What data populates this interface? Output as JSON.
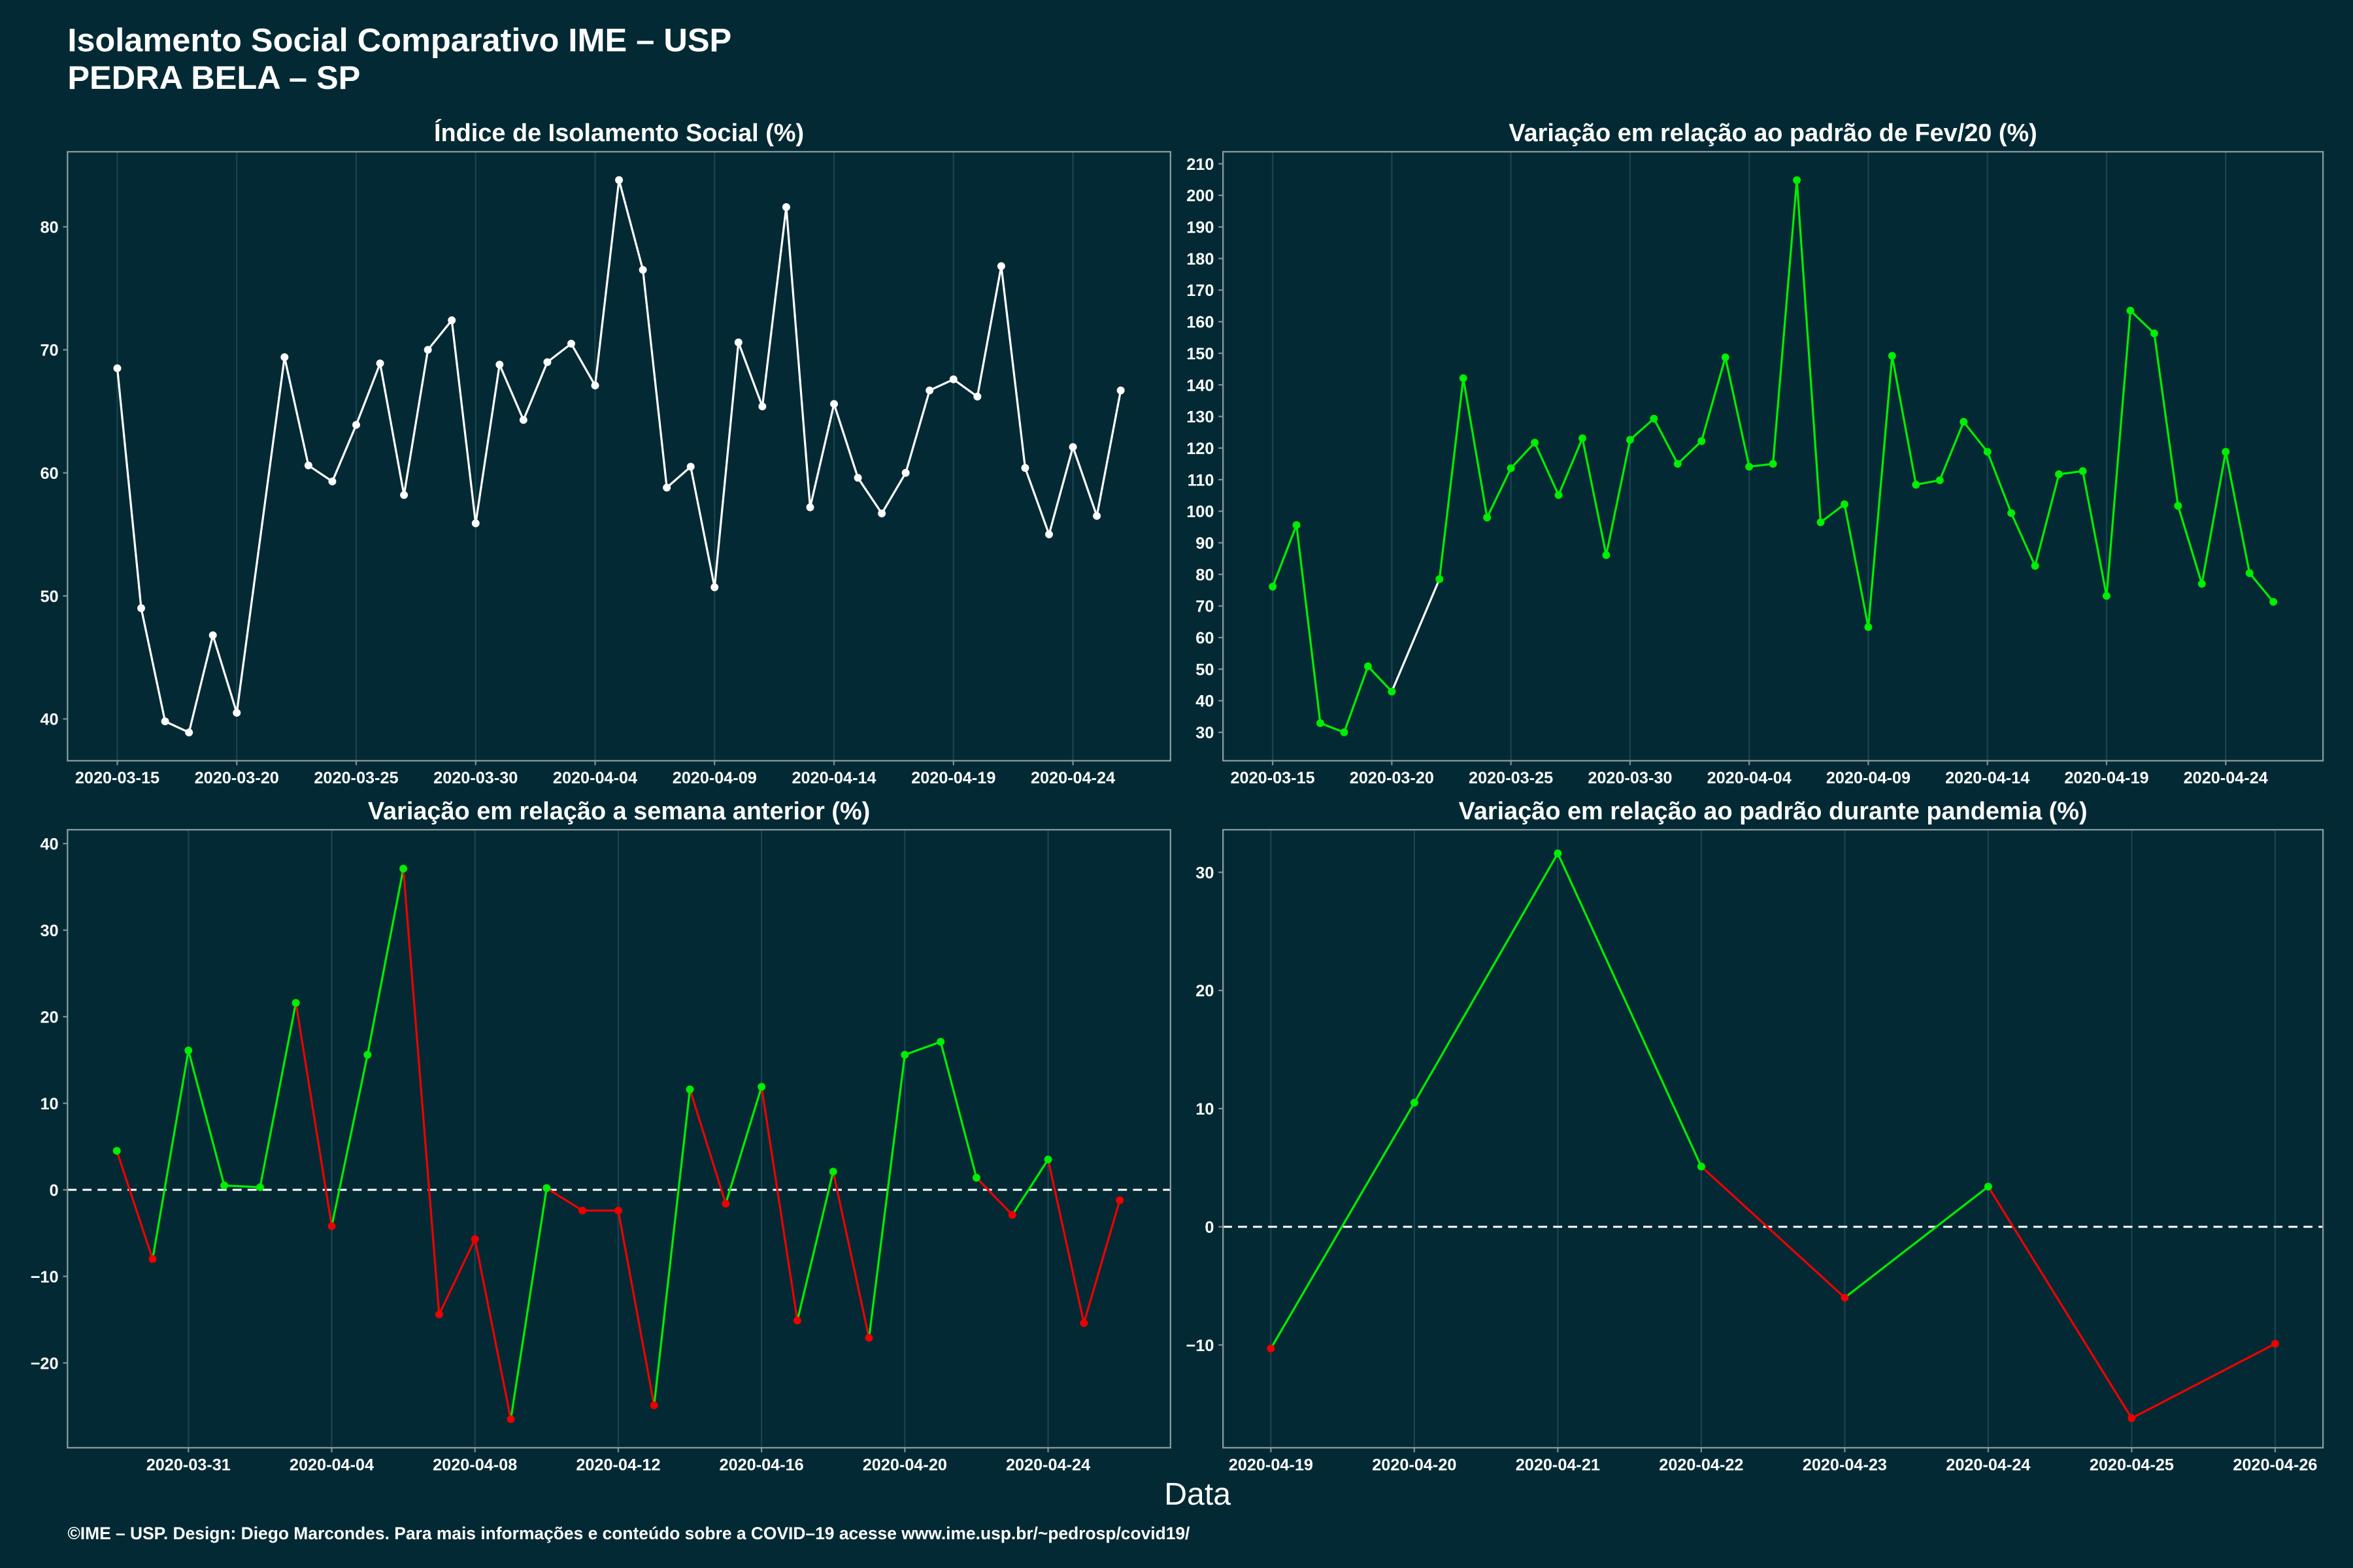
{
  "title": "Isolamento Social Comparativo IME – USP",
  "subtitle": "PEDRA BELA – SP",
  "xlabel": "Data",
  "footer": "©IME – USP. Design: Diego Marcondes. Para mais informações e conteúdo sobre a COVID–19 acesse www.ime.usp.br/~pedrosp/covid19/",
  "chart_data": [
    {
      "type": "line",
      "title": "Índice de Isolamento Social (%)",
      "x": [
        "2020-03-15",
        "2020-03-16",
        "2020-03-17",
        "2020-03-18",
        "2020-03-19",
        "2020-03-20",
        "2020-03-22",
        "2020-03-23",
        "2020-03-24",
        "2020-03-25",
        "2020-03-26",
        "2020-03-27",
        "2020-03-28",
        "2020-03-29",
        "2020-03-30",
        "2020-03-31",
        "2020-04-01",
        "2020-04-02",
        "2020-04-03",
        "2020-04-04",
        "2020-04-05",
        "2020-04-06",
        "2020-04-07",
        "2020-04-08",
        "2020-04-09",
        "2020-04-10",
        "2020-04-11",
        "2020-04-12",
        "2020-04-13",
        "2020-04-14",
        "2020-04-15",
        "2020-04-16",
        "2020-04-17",
        "2020-04-18",
        "2020-04-19",
        "2020-04-20",
        "2020-04-21",
        "2020-04-22",
        "2020-04-23",
        "2020-04-24",
        "2020-04-25",
        "2020-04-26"
      ],
      "series": [
        {
          "color": "#ffffff",
          "values": [
            68.5,
            49.0,
            39.8,
            38.9,
            46.8,
            40.5,
            69.4,
            60.6,
            59.3,
            63.9,
            68.9,
            58.2,
            70.0,
            72.4,
            55.9,
            68.8,
            64.3,
            69.0,
            70.5,
            67.1,
            83.8,
            76.5,
            58.8,
            60.5,
            50.7,
            70.6,
            65.4,
            81.6,
            57.2,
            65.6,
            59.6,
            56.7,
            60.0,
            66.7,
            67.6,
            66.2,
            76.8,
            60.4,
            55.0,
            62.1,
            56.5,
            66.7
          ]
        }
      ],
      "xlim": [
        "2020-03-12T22:00",
        "2020-04-28T02:00"
      ],
      "xticks": [
        "2020-03-15",
        "2020-03-20",
        "2020-03-25",
        "2020-03-30",
        "2020-04-04",
        "2020-04-09",
        "2020-04-14",
        "2020-04-19",
        "2020-04-24"
      ],
      "ylim": [
        36.6,
        86.1
      ],
      "yticks": [
        40,
        50,
        60,
        70,
        80
      ],
      "grid": "x"
    },
    {
      "type": "line",
      "title": "Variação em relação ao padrão de Fev/20 (%)",
      "x": [
        "2020-03-15",
        "2020-03-16",
        "2020-03-17",
        "2020-03-18",
        "2020-03-19",
        "2020-03-20",
        "2020-03-22",
        "2020-03-23",
        "2020-03-24",
        "2020-03-25",
        "2020-03-26",
        "2020-03-27",
        "2020-03-28",
        "2020-03-29",
        "2020-03-30",
        "2020-03-31",
        "2020-04-01",
        "2020-04-02",
        "2020-04-03",
        "2020-04-04",
        "2020-04-05",
        "2020-04-06",
        "2020-04-07",
        "2020-04-08",
        "2020-04-09",
        "2020-04-10",
        "2020-04-11",
        "2020-04-12",
        "2020-04-13",
        "2020-04-14",
        "2020-04-15",
        "2020-04-16",
        "2020-04-17",
        "2020-04-18",
        "2020-04-19",
        "2020-04-20",
        "2020-04-21",
        "2020-04-22",
        "2020-04-23",
        "2020-04-24",
        "2020-04-25",
        "2020-04-26"
      ],
      "series": [
        {
          "color": "#00ee00",
          "gap_color": "#ffffff",
          "values": [
            76.1,
            95.6,
            32.9,
            30.0,
            50.9,
            42.9,
            78.5,
            142.1,
            98.0,
            113.6,
            121.7,
            105.1,
            123.1,
            86.1,
            122.6,
            129.3,
            115.0,
            122.2,
            148.7,
            114.1,
            115.0,
            204.8,
            96.5,
            102.2,
            63.3,
            149.2,
            108.4,
            109.8,
            128.3,
            118.8,
            99.4,
            82.7,
            111.7,
            112.7,
            73.2,
            163.5,
            156.3,
            101.7,
            77.0,
            118.8,
            80.4,
            71.3
          ]
        }
      ],
      "xlim": [
        "2020-03-12T22:00",
        "2020-04-28T02:00"
      ],
      "xticks": [
        "2020-03-15",
        "2020-03-20",
        "2020-03-25",
        "2020-03-30",
        "2020-04-04",
        "2020-04-09",
        "2020-04-14",
        "2020-04-19",
        "2020-04-24"
      ],
      "ylim": [
        21.0,
        213.8
      ],
      "yticks": [
        30,
        40,
        50,
        60,
        70,
        80,
        90,
        100,
        110,
        120,
        130,
        140,
        150,
        160,
        170,
        180,
        190,
        200,
        210
      ],
      "grid": "x"
    },
    {
      "type": "line",
      "title": "Variação em relação a semana anterior (%)",
      "x": [
        "2020-03-29",
        "2020-03-30",
        "2020-03-31",
        "2020-04-01",
        "2020-04-02",
        "2020-04-03",
        "2020-04-04",
        "2020-04-05",
        "2020-04-06",
        "2020-04-07",
        "2020-04-08",
        "2020-04-09",
        "2020-04-10",
        "2020-04-11",
        "2020-04-12",
        "2020-04-13",
        "2020-04-14",
        "2020-04-15",
        "2020-04-16",
        "2020-04-17",
        "2020-04-18",
        "2020-04-19",
        "2020-04-20",
        "2020-04-21",
        "2020-04-22",
        "2020-04-23",
        "2020-04-24",
        "2020-04-25",
        "2020-04-26"
      ],
      "series": [
        {
          "color": "#00ee00",
          "negative_color": "#ee0000",
          "values": [
            4.5,
            -8.0,
            16.1,
            0.5,
            0.3,
            21.6,
            -4.2,
            15.6,
            37.1,
            -14.4,
            -5.7,
            -26.5,
            0.2,
            -2.4,
            -2.4,
            -24.9,
            11.6,
            -1.6,
            11.9,
            -15.1,
            2.1,
            -17.1,
            15.6,
            17.1,
            1.4,
            -2.9,
            3.5,
            -15.4,
            -1.2
          ]
        }
      ],
      "xlim": [
        "2020-03-27T15:00",
        "2020-04-27T10:00"
      ],
      "xticks": [
        "2020-03-31",
        "2020-04-04",
        "2020-04-08",
        "2020-04-12",
        "2020-04-16",
        "2020-04-20",
        "2020-04-24"
      ],
      "ylim": [
        -29.8,
        41.6
      ],
      "yticks": [
        {
          "value": -20,
          "label": "−20"
        },
        {
          "value": -10,
          "label": "−10"
        },
        0,
        10,
        20,
        30,
        40
      ],
      "grid": "x",
      "hline": 0
    },
    {
      "type": "line",
      "title": "Variação em relação ao padrão durante pandemia (%)",
      "x": [
        "2020-04-19",
        "2020-04-20",
        "2020-04-21",
        "2020-04-22",
        "2020-04-23",
        "2020-04-24",
        "2020-04-25",
        "2020-04-26"
      ],
      "series": [
        {
          "color": "#00ee00",
          "negative_color": "#ee0000",
          "values": [
            -10.3,
            10.5,
            31.6,
            5.1,
            -6.0,
            3.4,
            -16.2,
            -9.9
          ]
        }
      ],
      "xlim": [
        "2020-04-18T16:00",
        "2020-04-26T08:00"
      ],
      "xticks": [
        "2020-04-19",
        "2020-04-20",
        "2020-04-21",
        "2020-04-22",
        "2020-04-23",
        "2020-04-24",
        "2020-04-25",
        "2020-04-26"
      ],
      "ylim": [
        -18.7,
        33.6
      ],
      "yticks": [
        {
          "value": -10,
          "label": "−10"
        },
        0,
        10,
        20,
        30
      ],
      "grid": "x",
      "hline": 0
    }
  ]
}
